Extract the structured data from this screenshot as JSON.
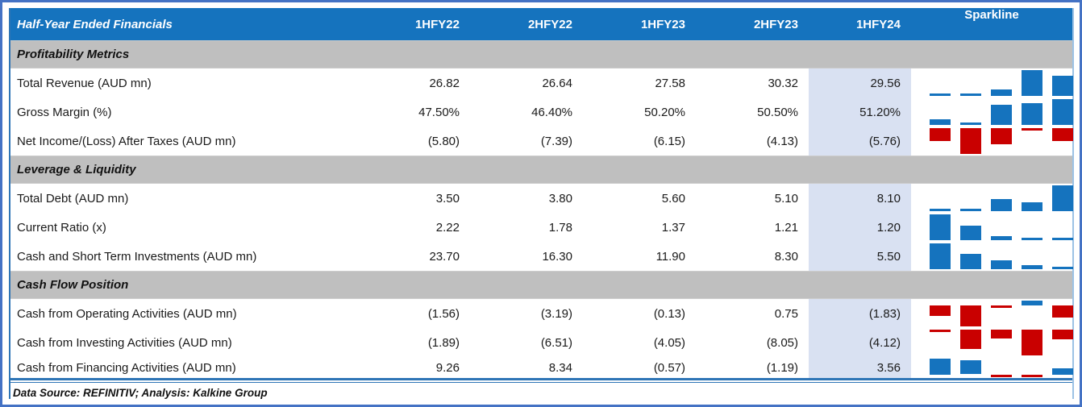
{
  "table": {
    "title": "Half-Year Ended Financials",
    "periods": [
      "1HFY22",
      "2HFY22",
      "1HFY23",
      "2HFY23",
      "1HFY24"
    ],
    "sparkline_label": "Sparkline",
    "sections": [
      {
        "title": "Profitability Metrics",
        "rows": [
          {
            "label": "Total Revenue (AUD mn)",
            "display": [
              "26.82",
              "26.64",
              "27.58",
              "30.32",
              "29.56"
            ],
            "values": [
              26.82,
              26.64,
              27.58,
              30.32,
              29.56
            ]
          },
          {
            "label": "Gross Margin (%)",
            "display": [
              "47.50%",
              "46.40%",
              "50.20%",
              "50.50%",
              "51.20%"
            ],
            "values": [
              47.5,
              46.4,
              50.2,
              50.5,
              51.2
            ]
          },
          {
            "label": "Net Income/(Loss) After Taxes (AUD mn)",
            "display": [
              "(5.80)",
              "(7.39)",
              "(6.15)",
              "(4.13)",
              "(5.76)"
            ],
            "values": [
              -5.8,
              -7.39,
              -6.15,
              -4.13,
              -5.76
            ]
          }
        ]
      },
      {
        "title": "Leverage & Liquidity",
        "rows": [
          {
            "label": "Total Debt (AUD mn)",
            "display": [
              "3.50",
              "3.80",
              "5.60",
              "5.10",
              "8.10"
            ],
            "values": [
              3.5,
              3.8,
              5.6,
              5.1,
              8.1
            ]
          },
          {
            "label": "Current Ratio (x)",
            "display": [
              "2.22",
              "1.78",
              "1.37",
              "1.21",
              "1.20"
            ],
            "values": [
              2.22,
              1.78,
              1.37,
              1.21,
              1.2
            ]
          },
          {
            "label": "Cash and Short Term Investments (AUD mn)",
            "display": [
              "23.70",
              "16.30",
              "11.90",
              "8.30",
              "5.50"
            ],
            "values": [
              23.7,
              16.3,
              11.9,
              8.3,
              5.5
            ]
          }
        ]
      },
      {
        "title": "Cash Flow Position",
        "rows": [
          {
            "label": "Cash from Operating Activities (AUD mn)",
            "display": [
              "(1.56)",
              "(3.19)",
              "(0.13)",
              "0.75",
              "(1.83)"
            ],
            "values": [
              -1.56,
              -3.19,
              -0.13,
              0.75,
              -1.83
            ]
          },
          {
            "label": "Cash from Investing Activities (AUD mn)",
            "display": [
              "(1.89)",
              "(6.51)",
              "(4.05)",
              "(8.05)",
              "(4.12)"
            ],
            "values": [
              -1.89,
              -6.51,
              -4.05,
              -8.05,
              -4.12
            ]
          },
          {
            "label": "Cash from Financing Activities (AUD mn)",
            "display": [
              "9.26",
              "8.34",
              "(0.57)",
              "(1.19)",
              "3.56"
            ],
            "values": [
              9.26,
              8.34,
              -0.57,
              -1.19,
              3.56
            ],
            "short": true
          }
        ]
      }
    ],
    "footer": "Data Source: REFINITIV; Analysis: Kalkine Group",
    "colors": {
      "header_bg": "#1573BE",
      "section_bg": "#BFBFBF",
      "highlight_bg": "#D9E1F2",
      "frame": "#4472C4",
      "rule": "#2E75B6",
      "positive": "#1573BE",
      "negative": "#C90000"
    }
  },
  "chart_data": {
    "type": "table",
    "title": "Half-Year Ended Financials",
    "categories": [
      "1HFY22",
      "2HFY22",
      "1HFY23",
      "2HFY23",
      "1HFY24"
    ],
    "series": [
      {
        "name": "Total Revenue (AUD mn)",
        "section": "Profitability Metrics",
        "values": [
          26.82,
          26.64,
          27.58,
          30.32,
          29.56
        ]
      },
      {
        "name": "Gross Margin (%)",
        "section": "Profitability Metrics",
        "values": [
          47.5,
          46.4,
          50.2,
          50.5,
          51.2
        ]
      },
      {
        "name": "Net Income/(Loss) After Taxes (AUD mn)",
        "section": "Profitability Metrics",
        "values": [
          -5.8,
          -7.39,
          -6.15,
          -4.13,
          -5.76
        ]
      },
      {
        "name": "Total Debt (AUD mn)",
        "section": "Leverage & Liquidity",
        "values": [
          3.5,
          3.8,
          5.6,
          5.1,
          8.1
        ]
      },
      {
        "name": "Current Ratio (x)",
        "section": "Leverage & Liquidity",
        "values": [
          2.22,
          1.78,
          1.37,
          1.21,
          1.2
        ]
      },
      {
        "name": "Cash and Short Term Investments (AUD mn)",
        "section": "Leverage & Liquidity",
        "values": [
          23.7,
          16.3,
          11.9,
          8.3,
          5.5
        ]
      },
      {
        "name": "Cash from Operating Activities (AUD mn)",
        "section": "Cash Flow Position",
        "values": [
          -1.56,
          -3.19,
          -0.13,
          0.75,
          -1.83
        ]
      },
      {
        "name": "Cash from Investing Activities (AUD mn)",
        "section": "Cash Flow Position",
        "values": [
          -1.89,
          -6.51,
          -4.05,
          -8.05,
          -4.12
        ]
      },
      {
        "name": "Cash from Financing Activities (AUD mn)",
        "section": "Cash Flow Position",
        "values": [
          9.26,
          8.34,
          -0.57,
          -1.19,
          3.56
        ]
      }
    ],
    "sparkline": {
      "type": "bar",
      "positive_color": "#1573BE",
      "negative_color": "#C90000",
      "scaling": "per-row min/max, baseline at zero when range crosses zero"
    },
    "highlighted_column": "1HFY24",
    "source_note": "Data Source: REFINITIV; Analysis: Kalkine Group"
  }
}
